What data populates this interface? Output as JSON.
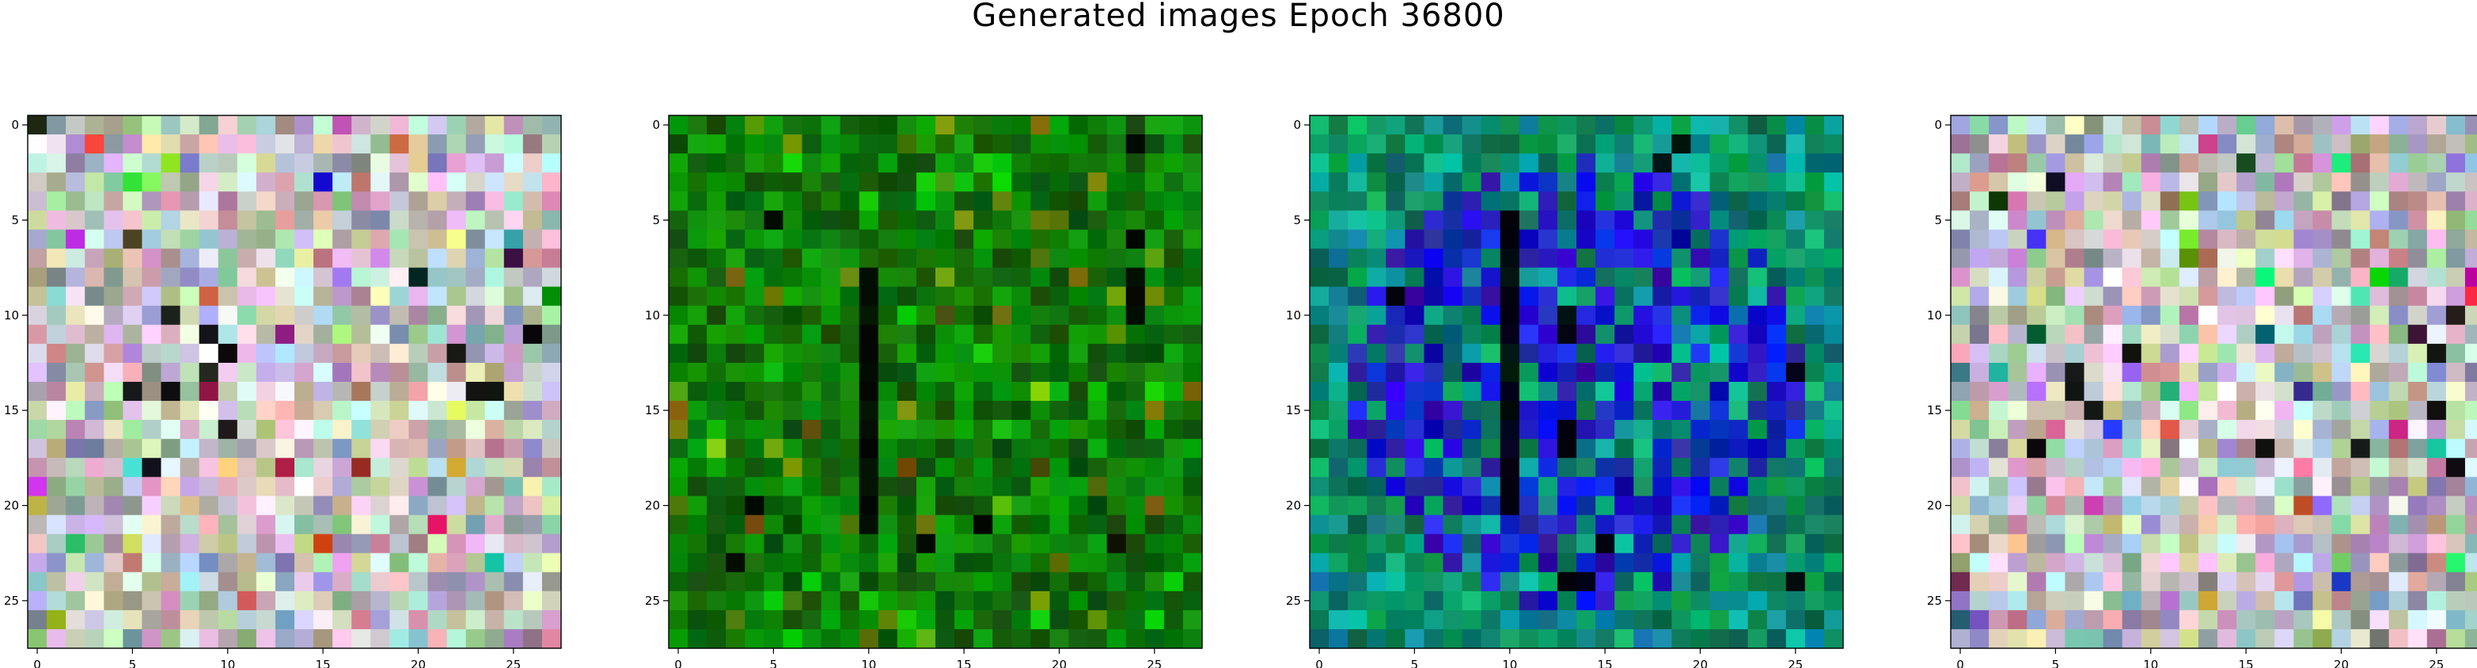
{
  "figure_title": "Generated images Epoch 36800",
  "chart_data": [
    {
      "type": "heatmap",
      "panel": "image-1",
      "palette": "pastel-noise",
      "xticks": [
        0,
        5,
        10,
        15,
        20,
        25
      ],
      "yticks": [
        0,
        5,
        10,
        15,
        20,
        25
      ],
      "xlim": [
        -0.5,
        27.5
      ],
      "ylim": [
        27.5,
        -0.5
      ],
      "grid": false,
      "dark_pixels": [
        [
          10,
          7
        ],
        [
          11,
          9
        ],
        [
          11,
          26
        ],
        [
          12,
          10
        ],
        [
          13,
          9
        ],
        [
          14,
          5
        ],
        [
          14,
          7
        ],
        [
          14,
          23
        ],
        [
          14,
          24
        ],
        [
          16,
          10
        ],
        [
          18,
          6
        ],
        [
          12,
          22
        ]
      ]
    },
    {
      "type": "heatmap",
      "panel": "image-2",
      "palette": "green",
      "xticks": [
        0,
        5,
        10,
        15,
        20,
        25
      ],
      "yticks": [
        0,
        5,
        10,
        15,
        20,
        25
      ],
      "xlim": [
        -0.5,
        27.5
      ],
      "ylim": [
        27.5,
        -0.5
      ],
      "grid": false,
      "dark_pixels": [
        [
          1,
          24
        ],
        [
          5,
          5
        ],
        [
          6,
          24
        ],
        [
          8,
          10
        ],
        [
          9,
          10
        ],
        [
          10,
          10
        ],
        [
          11,
          10
        ],
        [
          12,
          10
        ],
        [
          13,
          10
        ],
        [
          14,
          10
        ],
        [
          15,
          10
        ],
        [
          16,
          10
        ],
        [
          17,
          10
        ],
        [
          18,
          10
        ],
        [
          19,
          10
        ],
        [
          20,
          10
        ],
        [
          8,
          24
        ],
        [
          9,
          24
        ],
        [
          10,
          24
        ],
        [
          20,
          4
        ],
        [
          21,
          10
        ],
        [
          21,
          16
        ],
        [
          22,
          13
        ],
        [
          22,
          23
        ],
        [
          23,
          3
        ]
      ]
    },
    {
      "type": "heatmap",
      "panel": "image-3",
      "palette": "blue-teal",
      "xticks": [
        0,
        5,
        10,
        15,
        20,
        25
      ],
      "yticks": [
        0,
        5,
        10,
        15,
        20,
        25
      ],
      "xlim": [
        -0.5,
        27.5
      ],
      "ylim": [
        27.5,
        -0.5
      ],
      "grid": false,
      "dark_pixels": [
        [
          1,
          19
        ],
        [
          2,
          18
        ],
        [
          5,
          10
        ],
        [
          6,
          10
        ],
        [
          7,
          10
        ],
        [
          8,
          10
        ],
        [
          9,
          10
        ],
        [
          10,
          10
        ],
        [
          11,
          10
        ],
        [
          12,
          10
        ],
        [
          13,
          10
        ],
        [
          14,
          10
        ],
        [
          15,
          10
        ],
        [
          16,
          10
        ],
        [
          17,
          10
        ],
        [
          18,
          10
        ],
        [
          19,
          10
        ],
        [
          20,
          10
        ],
        [
          10,
          13
        ],
        [
          11,
          13
        ],
        [
          16,
          13
        ],
        [
          17,
          13
        ],
        [
          24,
          13
        ],
        [
          24,
          14
        ],
        [
          22,
          15
        ],
        [
          24,
          25
        ],
        [
          9,
          4
        ],
        [
          13,
          25
        ]
      ]
    },
    {
      "type": "heatmap",
      "panel": "image-4",
      "palette": "pastel-noise",
      "xticks": [
        0,
        5,
        10,
        15,
        20,
        25
      ],
      "yticks": [
        0,
        5,
        10,
        15,
        20,
        25
      ],
      "xlim": [
        -0.5,
        27.5
      ],
      "ylim": [
        27.5,
        -0.5
      ],
      "grid": false,
      "dark_pixels": [
        [
          3,
          5
        ],
        [
          10,
          26
        ],
        [
          12,
          25
        ],
        [
          13,
          6
        ],
        [
          14,
          6
        ],
        [
          15,
          7
        ],
        [
          15,
          25
        ],
        [
          17,
          4
        ],
        [
          17,
          16
        ],
        [
          17,
          21
        ],
        [
          18,
          26
        ],
        [
          12,
          9
        ]
      ]
    }
  ]
}
